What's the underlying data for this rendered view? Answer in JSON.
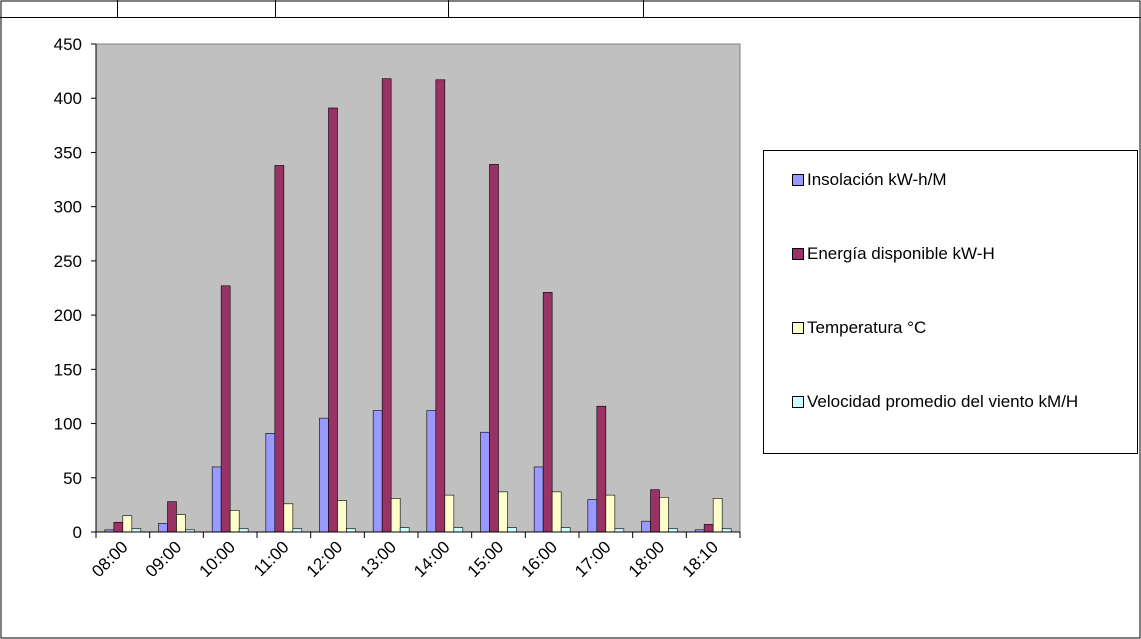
{
  "chart_data": {
    "type": "bar",
    "categories": [
      "08:00",
      "09:00",
      "10:00",
      "11:00",
      "12:00",
      "13:00",
      "14:00",
      "15:00",
      "16:00",
      "17:00",
      "18:00",
      "18:10"
    ],
    "ylim": [
      0,
      450
    ],
    "yticks": [
      0,
      50,
      100,
      150,
      200,
      250,
      300,
      350,
      400,
      450
    ],
    "grid": false,
    "legend_position": "right",
    "plot_background": "#c0c0c0",
    "series": [
      {
        "name": "Insolación kW-h/M",
        "color": "#9999ff",
        "values": [
          2,
          8,
          60,
          91,
          105,
          112,
          112,
          92,
          60,
          30,
          10,
          2
        ]
      },
      {
        "name": "Energía disponible kW-H",
        "color": "#993366",
        "values": [
          9,
          28,
          227,
          338,
          391,
          418,
          417,
          339,
          221,
          116,
          39,
          7
        ]
      },
      {
        "name": "Temperatura °C",
        "color": "#ffffcc",
        "values": [
          15,
          16,
          20,
          26,
          29,
          31,
          34,
          37,
          37,
          34,
          32,
          31
        ]
      },
      {
        "name": "Velocidad promedio del viento kM/H",
        "color": "#ccffff",
        "values": [
          3,
          2,
          3,
          3,
          3,
          4,
          4,
          4,
          4,
          3,
          3,
          3
        ]
      }
    ]
  }
}
